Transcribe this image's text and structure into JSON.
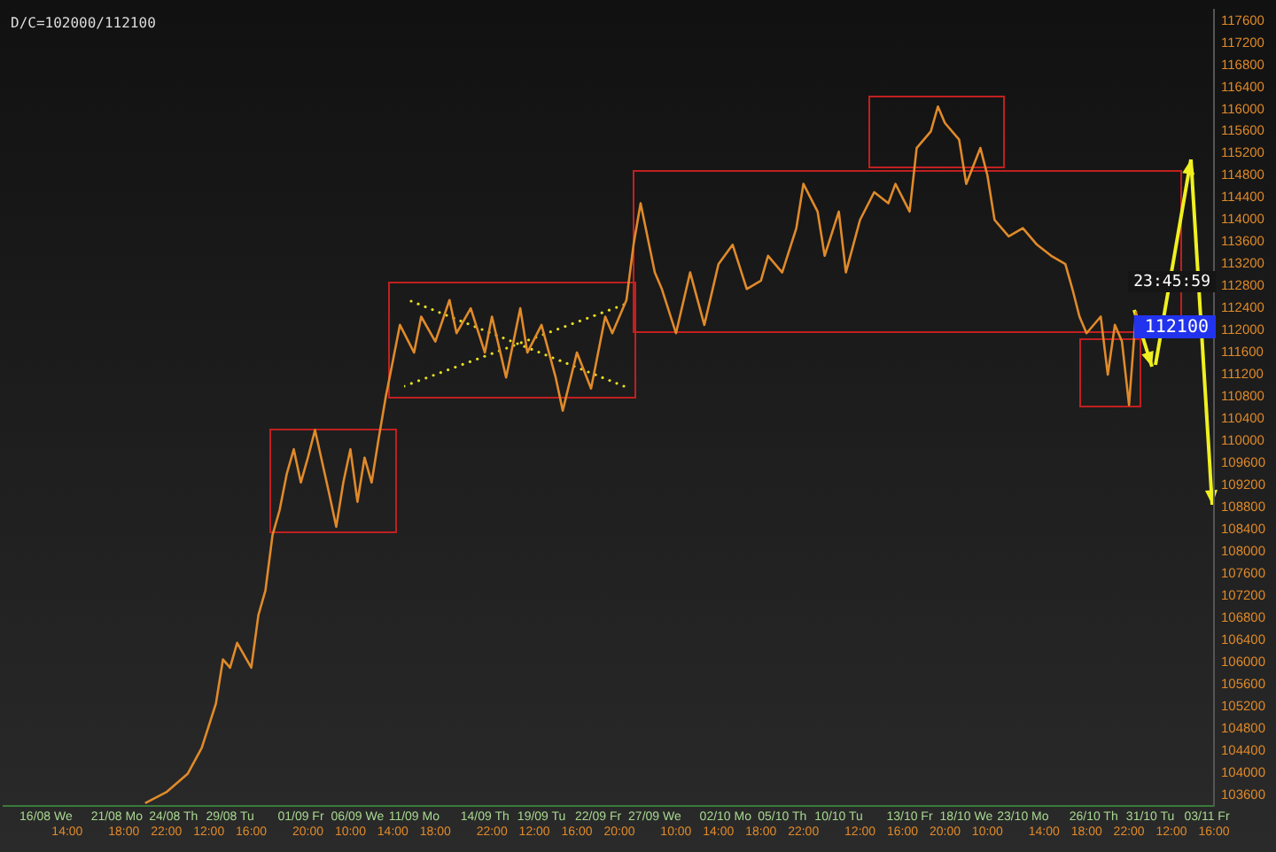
{
  "chart_data": {
    "type": "line",
    "categories": [
      null,
      null,
      null,
      null,
      null,
      null,
      "16/08 We",
      null,
      null,
      "14:00",
      null,
      null,
      null,
      null,
      null,
      null,
      "21/08 Mo",
      "18:00",
      null,
      null,
      null,
      null,
      null,
      "22:00",
      "24/08 Th",
      null,
      null,
      null,
      null,
      "12:00",
      null,
      null,
      "29/08 Tu",
      null,
      null,
      "16:00",
      null,
      null,
      null,
      null,
      null,
      null,
      "01/09 Fr",
      "20:00",
      null,
      null,
      null,
      null,
      null,
      "10:00",
      "06/09 We",
      null,
      null,
      null,
      null,
      "14:00",
      null,
      null,
      "11/09 Mo",
      null,
      null,
      "18:00",
      null,
      null,
      null,
      null,
      null,
      null,
      "14/09 Th",
      "22:00",
      null,
      null,
      null,
      null,
      null,
      "12:00",
      "19/09 Tu",
      null,
      null,
      null,
      null,
      "16:00",
      null,
      null,
      "22/09 Fr",
      null,
      null,
      "20:00",
      null,
      null,
      null,
      null,
      "27/09 We",
      null,
      null,
      "10:00",
      null,
      null,
      null,
      null,
      null,
      "14:00",
      "02/10 Mo",
      null,
      null,
      null,
      null,
      "18:00",
      null,
      null,
      "05/10 Th",
      null,
      null,
      "22:00",
      null,
      null,
      null,
      null,
      "10/10 Tu",
      null,
      null,
      "12:00",
      null,
      null,
      null,
      null,
      null,
      "16:00",
      "13/10 Fr",
      null,
      null,
      null,
      null,
      "20:00",
      null,
      null,
      "18/10 We",
      null,
      null,
      "10:00",
      null,
      null,
      null,
      null,
      "23/10 Mo",
      null,
      null,
      "14:00",
      null,
      null,
      null,
      null,
      null,
      "18:00",
      "26/10 Th",
      null,
      null,
      null,
      null,
      "22:00",
      null,
      null,
      "31/10 Tu",
      null,
      null,
      "12:00",
      null,
      null,
      null,
      null,
      "03/11 Fr",
      "16:00"
    ],
    "series": [
      {
        "color": "#e08a2a",
        "values": [
          null,
          null,
          null,
          null,
          null,
          null,
          null,
          null,
          null,
          null,
          null,
          null,
          null,
          null,
          null,
          null,
          null,
          null,
          null,
          null,
          103450,
          null,
          null,
          103650,
          null,
          null,
          103980,
          null,
          104450,
          null,
          105250,
          106050,
          105900,
          106350,
          null,
          105900,
          106850,
          107300,
          108300,
          108750,
          109400,
          109850,
          109250,
          109700,
          110200,
          null,
          109050,
          108450,
          109250,
          109850,
          108900,
          109700,
          109250,
          110050,
          110800,
          111450,
          112100,
          null,
          111600,
          112250,
          null,
          111800,
          null,
          112550,
          111950,
          null,
          112400,
          null,
          111600,
          112250,
          null,
          111150,
          null,
          112400,
          111600,
          null,
          112100,
          null,
          111150,
          110550,
          null,
          111600,
          null,
          110950,
          null,
          112250,
          111950,
          null,
          112550,
          113550,
          114300,
          null,
          113050,
          112750,
          null,
          111950,
          null,
          113050,
          null,
          112100,
          null,
          113200,
          null,
          113550,
          null,
          112750,
          null,
          112900,
          113350,
          null,
          113050,
          null,
          113850,
          114650,
          null,
          114150,
          113350,
          null,
          114150,
          113050,
          null,
          114000,
          null,
          114500,
          null,
          114300,
          114650,
          null,
          114150,
          115300,
          null,
          115600,
          116050,
          115750,
          null,
          115450,
          114650,
          null,
          115300,
          114800,
          114000,
          null,
          113700,
          null,
          113850,
          null,
          113550,
          null,
          113350,
          null,
          113200,
          112750,
          112250,
          111950,
          null,
          112250,
          111200,
          112100,
          111800,
          110650,
          112350,
          null,
          null,
          null,
          null,
          null,
          null,
          null,
          null,
          null,
          null,
          null
        ]
      }
    ],
    "ylim": [
      103400,
      117800
    ],
    "yticks": [
      103600,
      104000,
      104400,
      104800,
      105200,
      105600,
      106000,
      106400,
      106800,
      107200,
      107600,
      108000,
      108400,
      108800,
      109200,
      109600,
      110000,
      110400,
      110800,
      111200,
      111600,
      112000,
      112400,
      112800,
      113200,
      113600,
      114000,
      114400,
      114800,
      115200,
      115600,
      116000,
      116400,
      116800,
      117200,
      117600
    ],
    "annotations": [
      "D/C=102000/112100",
      "23:45:59",
      "112100"
    ],
    "marker": "none",
    "line_style": "solid",
    "grid": false,
    "legend": false
  }
}
